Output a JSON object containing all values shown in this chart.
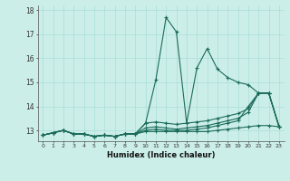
{
  "title": "",
  "xlabel": "Humidex (Indice chaleur)",
  "ylabel": "",
  "bg_color": "#cceee8",
  "line_color": "#1a6b5a",
  "grid_color": "#aaddda",
  "x_ticks": [
    0,
    1,
    2,
    3,
    4,
    5,
    6,
    7,
    8,
    9,
    10,
    11,
    12,
    13,
    14,
    15,
    16,
    17,
    18,
    19,
    20,
    21,
    22,
    23
  ],
  "y_ticks": [
    13,
    14,
    15,
    16,
    17,
    18
  ],
  "xlim": [
    -0.5,
    23.5
  ],
  "ylim": [
    12.55,
    18.2
  ],
  "series": [
    [
      12.8,
      12.9,
      13.0,
      12.85,
      12.85,
      12.75,
      12.8,
      12.75,
      12.85,
      12.85,
      13.3,
      15.1,
      17.7,
      17.1,
      13.3,
      15.6,
      16.4,
      15.55,
      15.2,
      15.0,
      14.9,
      14.55,
      14.55,
      13.15
    ],
    [
      12.8,
      12.9,
      13.0,
      12.85,
      12.85,
      12.75,
      12.8,
      12.75,
      12.85,
      12.85,
      13.3,
      13.35,
      13.3,
      13.25,
      13.3,
      13.35,
      13.4,
      13.5,
      13.6,
      13.7,
      13.9,
      14.55,
      14.55,
      13.15
    ],
    [
      12.8,
      12.9,
      13.0,
      12.85,
      12.85,
      12.75,
      12.8,
      12.75,
      12.85,
      12.85,
      13.1,
      13.15,
      13.1,
      13.05,
      13.1,
      13.15,
      13.2,
      13.3,
      13.4,
      13.5,
      13.75,
      14.55,
      14.55,
      13.15
    ],
    [
      12.8,
      12.9,
      13.0,
      12.85,
      12.85,
      12.75,
      12.8,
      12.75,
      12.85,
      12.85,
      13.0,
      13.05,
      13.0,
      13.0,
      13.0,
      13.05,
      13.1,
      13.2,
      13.3,
      13.4,
      14.0,
      14.55,
      14.55,
      13.15
    ],
    [
      12.8,
      12.9,
      13.0,
      12.85,
      12.85,
      12.75,
      12.8,
      12.75,
      12.85,
      12.85,
      12.95,
      12.95,
      12.95,
      12.95,
      12.95,
      12.95,
      12.95,
      13.0,
      13.05,
      13.1,
      13.15,
      13.2,
      13.2,
      13.15
    ]
  ]
}
